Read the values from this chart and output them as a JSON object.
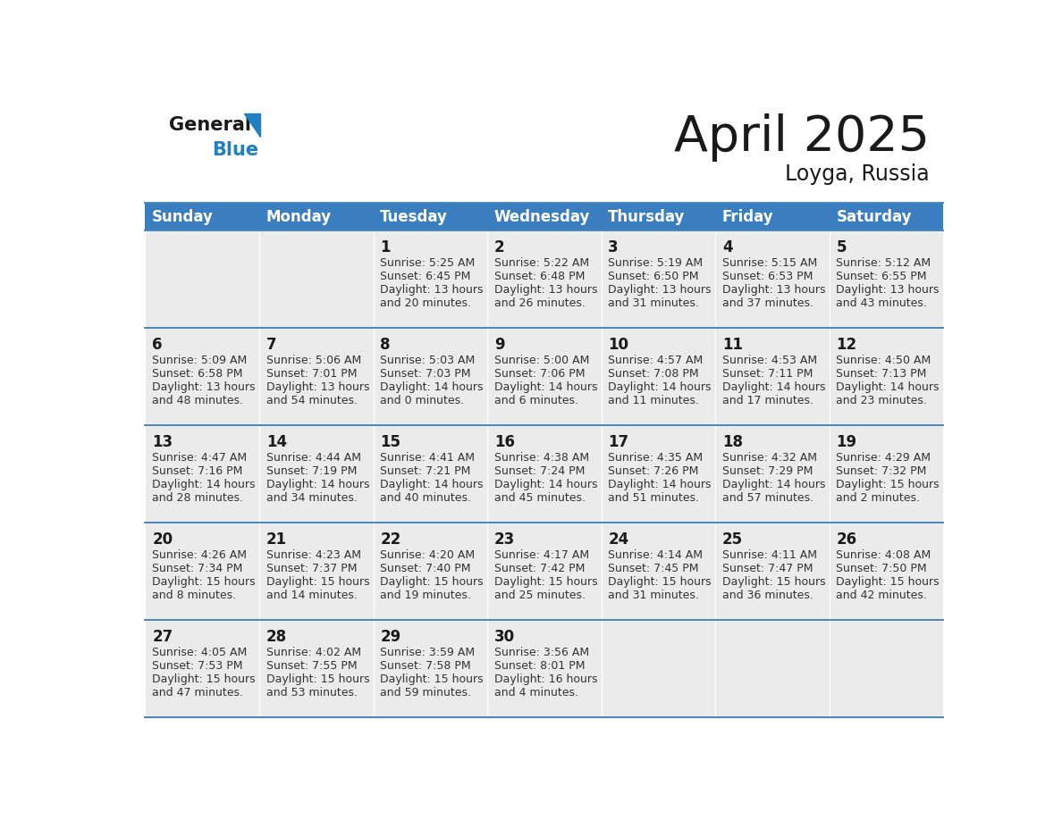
{
  "title": "April 2025",
  "subtitle": "Loyga, Russia",
  "header_color": "#3a7ebf",
  "header_text_color": "#ffffff",
  "cell_bg_color": "#ebebeb",
  "empty_cell_bg_color": "#ebebeb",
  "day_names": [
    "Sunday",
    "Monday",
    "Tuesday",
    "Wednesday",
    "Thursday",
    "Friday",
    "Saturday"
  ],
  "weeks": [
    [
      {
        "day": "",
        "info": ""
      },
      {
        "day": "",
        "info": ""
      },
      {
        "day": "1",
        "info": "Sunrise: 5:25 AM\nSunset: 6:45 PM\nDaylight: 13 hours\nand 20 minutes."
      },
      {
        "day": "2",
        "info": "Sunrise: 5:22 AM\nSunset: 6:48 PM\nDaylight: 13 hours\nand 26 minutes."
      },
      {
        "day": "3",
        "info": "Sunrise: 5:19 AM\nSunset: 6:50 PM\nDaylight: 13 hours\nand 31 minutes."
      },
      {
        "day": "4",
        "info": "Sunrise: 5:15 AM\nSunset: 6:53 PM\nDaylight: 13 hours\nand 37 minutes."
      },
      {
        "day": "5",
        "info": "Sunrise: 5:12 AM\nSunset: 6:55 PM\nDaylight: 13 hours\nand 43 minutes."
      }
    ],
    [
      {
        "day": "6",
        "info": "Sunrise: 5:09 AM\nSunset: 6:58 PM\nDaylight: 13 hours\nand 48 minutes."
      },
      {
        "day": "7",
        "info": "Sunrise: 5:06 AM\nSunset: 7:01 PM\nDaylight: 13 hours\nand 54 minutes."
      },
      {
        "day": "8",
        "info": "Sunrise: 5:03 AM\nSunset: 7:03 PM\nDaylight: 14 hours\nand 0 minutes."
      },
      {
        "day": "9",
        "info": "Sunrise: 5:00 AM\nSunset: 7:06 PM\nDaylight: 14 hours\nand 6 minutes."
      },
      {
        "day": "10",
        "info": "Sunrise: 4:57 AM\nSunset: 7:08 PM\nDaylight: 14 hours\nand 11 minutes."
      },
      {
        "day": "11",
        "info": "Sunrise: 4:53 AM\nSunset: 7:11 PM\nDaylight: 14 hours\nand 17 minutes."
      },
      {
        "day": "12",
        "info": "Sunrise: 4:50 AM\nSunset: 7:13 PM\nDaylight: 14 hours\nand 23 minutes."
      }
    ],
    [
      {
        "day": "13",
        "info": "Sunrise: 4:47 AM\nSunset: 7:16 PM\nDaylight: 14 hours\nand 28 minutes."
      },
      {
        "day": "14",
        "info": "Sunrise: 4:44 AM\nSunset: 7:19 PM\nDaylight: 14 hours\nand 34 minutes."
      },
      {
        "day": "15",
        "info": "Sunrise: 4:41 AM\nSunset: 7:21 PM\nDaylight: 14 hours\nand 40 minutes."
      },
      {
        "day": "16",
        "info": "Sunrise: 4:38 AM\nSunset: 7:24 PM\nDaylight: 14 hours\nand 45 minutes."
      },
      {
        "day": "17",
        "info": "Sunrise: 4:35 AM\nSunset: 7:26 PM\nDaylight: 14 hours\nand 51 minutes."
      },
      {
        "day": "18",
        "info": "Sunrise: 4:32 AM\nSunset: 7:29 PM\nDaylight: 14 hours\nand 57 minutes."
      },
      {
        "day": "19",
        "info": "Sunrise: 4:29 AM\nSunset: 7:32 PM\nDaylight: 15 hours\nand 2 minutes."
      }
    ],
    [
      {
        "day": "20",
        "info": "Sunrise: 4:26 AM\nSunset: 7:34 PM\nDaylight: 15 hours\nand 8 minutes."
      },
      {
        "day": "21",
        "info": "Sunrise: 4:23 AM\nSunset: 7:37 PM\nDaylight: 15 hours\nand 14 minutes."
      },
      {
        "day": "22",
        "info": "Sunrise: 4:20 AM\nSunset: 7:40 PM\nDaylight: 15 hours\nand 19 minutes."
      },
      {
        "day": "23",
        "info": "Sunrise: 4:17 AM\nSunset: 7:42 PM\nDaylight: 15 hours\nand 25 minutes."
      },
      {
        "day": "24",
        "info": "Sunrise: 4:14 AM\nSunset: 7:45 PM\nDaylight: 15 hours\nand 31 minutes."
      },
      {
        "day": "25",
        "info": "Sunrise: 4:11 AM\nSunset: 7:47 PM\nDaylight: 15 hours\nand 36 minutes."
      },
      {
        "day": "26",
        "info": "Sunrise: 4:08 AM\nSunset: 7:50 PM\nDaylight: 15 hours\nand 42 minutes."
      }
    ],
    [
      {
        "day": "27",
        "info": "Sunrise: 4:05 AM\nSunset: 7:53 PM\nDaylight: 15 hours\nand 47 minutes."
      },
      {
        "day": "28",
        "info": "Sunrise: 4:02 AM\nSunset: 7:55 PM\nDaylight: 15 hours\nand 53 minutes."
      },
      {
        "day": "29",
        "info": "Sunrise: 3:59 AM\nSunset: 7:58 PM\nDaylight: 15 hours\nand 59 minutes."
      },
      {
        "day": "30",
        "info": "Sunrise: 3:56 AM\nSunset: 8:01 PM\nDaylight: 16 hours\nand 4 minutes."
      },
      {
        "day": "",
        "info": ""
      },
      {
        "day": "",
        "info": ""
      },
      {
        "day": "",
        "info": ""
      }
    ]
  ],
  "logo_text_general": "General",
  "logo_text_blue": "Blue",
  "logo_color_general": "#1a1a1a",
  "logo_color_blue": "#2080c0",
  "logo_triangle_color": "#2080c0",
  "title_color": "#1a1a1a",
  "subtitle_color": "#1a1a1a",
  "divider_color": "#4a86be",
  "cell_text_color": "#1a1a1a",
  "cell_info_color": "#333333",
  "title_fontsize": 40,
  "subtitle_fontsize": 17,
  "header_fontsize": 12,
  "day_num_fontsize": 12,
  "info_fontsize": 9
}
